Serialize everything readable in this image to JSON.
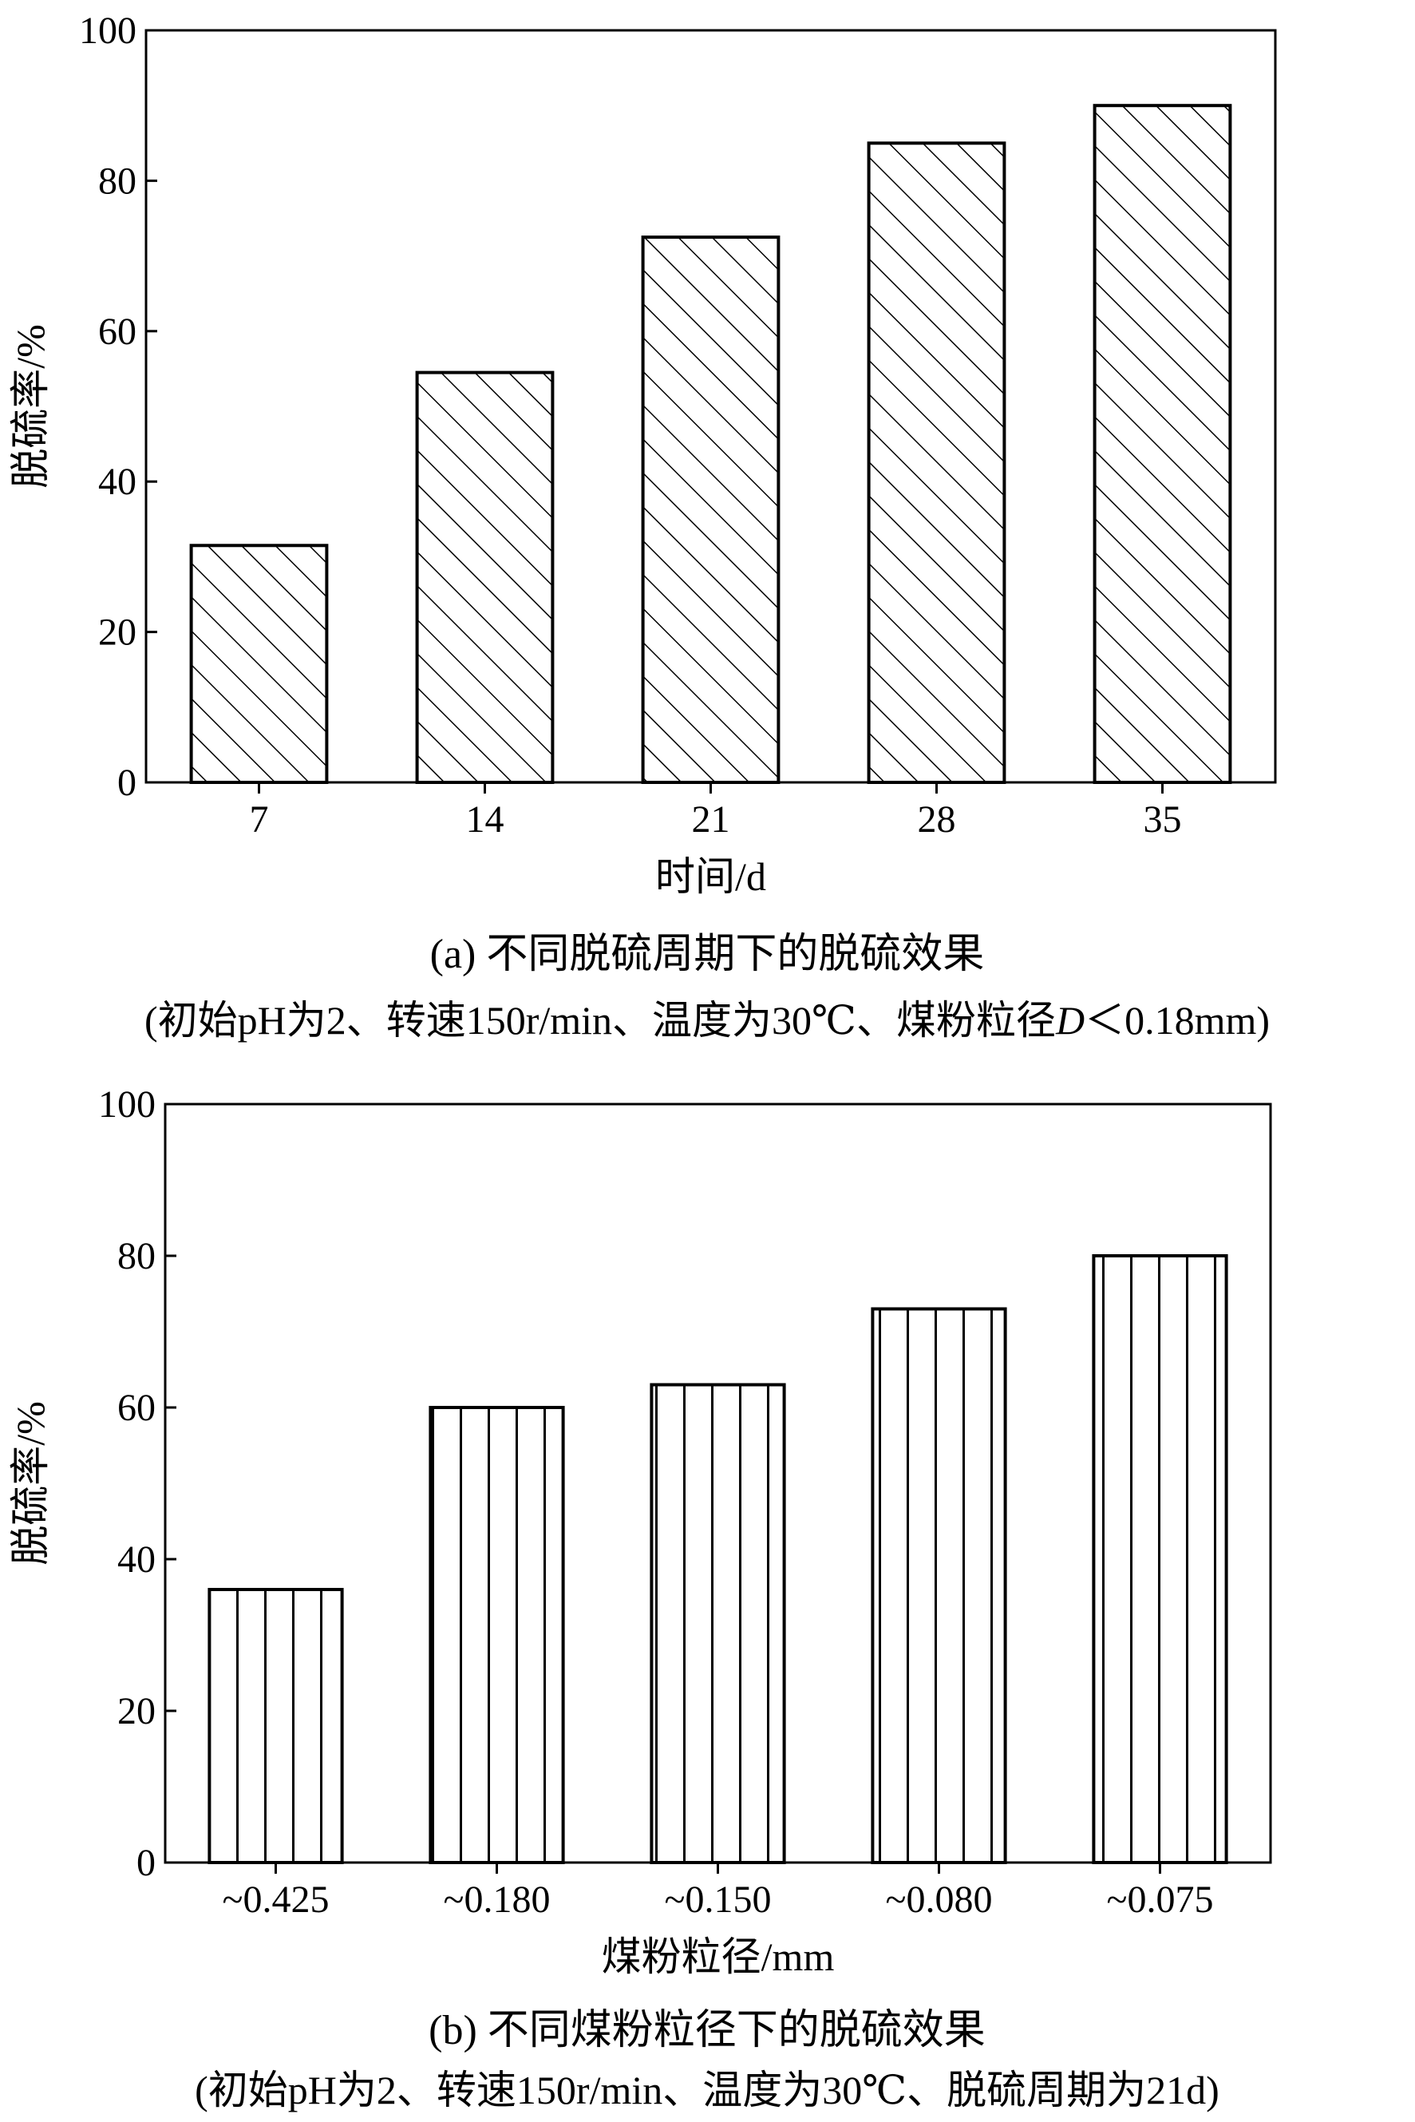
{
  "chart_data": [
    {
      "type": "bar",
      "panel": "a",
      "categories": [
        "7",
        "14",
        "21",
        "28",
        "35"
      ],
      "values": [
        31.5,
        54.5,
        72.5,
        85,
        90
      ],
      "xlabel": "时间/d",
      "ylabel": "脱硫率/%",
      "ylim": [
        0,
        100
      ],
      "yticks": [
        "0",
        "20",
        "40",
        "60",
        "80",
        "100"
      ],
      "pattern": "diagonal-hatch",
      "caption": "(a) 不同脱硫周期下的脱硫效果",
      "subcaption_parts": [
        "(初始pH为2、转速150r/min、温度为30℃、煤粉粒径",
        "D",
        "＜0.18mm)"
      ],
      "grid": false
    },
    {
      "type": "bar",
      "panel": "b",
      "categories": [
        "~0.425",
        "~0.180",
        "~0.150",
        "~0.080",
        "~0.075"
      ],
      "values": [
        36,
        60,
        63,
        73,
        80
      ],
      "xlabel": "煤粉粒径/mm",
      "ylabel": "脱硫率/%",
      "ylim": [
        0,
        100
      ],
      "yticks": [
        "0",
        "20",
        "40",
        "60",
        "80",
        "100"
      ],
      "pattern": "vertical-hatch",
      "caption": "(b) 不同煤粉粒径下的脱硫效果",
      "subcaption": "(初始pH为2、转速150r/min、温度为30℃、脱硫周期为21d)",
      "grid": false
    }
  ]
}
